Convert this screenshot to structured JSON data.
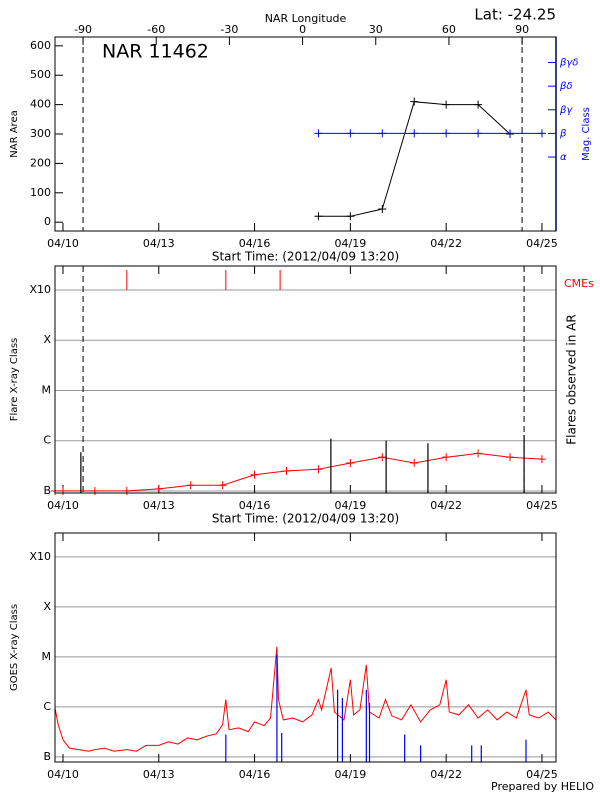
{
  "chart_data": [
    {
      "type": "line",
      "title": "Lat: -24.25",
      "annotation": "NAR 11462",
      "x2label": "NAR Longitude",
      "x2lim": [
        -101.5,
        103.9
      ],
      "x2ticks": [
        -90,
        -60,
        -30,
        0,
        30,
        60,
        90
      ],
      "limb_x2": [
        -90,
        90
      ],
      "xlabel": "Start Time: (2012/04/09 13:20)",
      "xlim": [
        9.75,
        25.44
      ],
      "xticks": [
        {
          "value": 10,
          "label": "04/10"
        },
        {
          "value": 13,
          "label": "04/13"
        },
        {
          "value": 16,
          "label": "04/16"
        },
        {
          "value": 19,
          "label": "04/19"
        },
        {
          "value": 22,
          "label": "04/22"
        },
        {
          "value": 25,
          "label": "04/25"
        }
      ],
      "ylabel": "NAR Area",
      "ylim": [
        -30,
        630
      ],
      "yticks": [
        0,
        100,
        200,
        300,
        400,
        500,
        600
      ],
      "grid": false,
      "y2label": "Mag. Class",
      "y2color": "#0000ff",
      "y2lim": [
        -2.13,
        6.08
      ],
      "y2ticks": [
        {
          "value": 1,
          "label": "α"
        },
        {
          "value": 2,
          "label": "β"
        },
        {
          "value": 3,
          "label": "βγ"
        },
        {
          "value": 4,
          "label": "βδ"
        },
        {
          "value": 5,
          "label": "βγδ"
        }
      ],
      "series": [
        {
          "kind": "line",
          "marker": "+",
          "color": "#000000",
          "x": [
            18,
            19,
            20,
            21,
            22,
            23,
            24
          ],
          "values": [
            20,
            20,
            45,
            410,
            400,
            400,
            300
          ]
        },
        {
          "kind": "line",
          "marker": "+",
          "axis": "y2",
          "color": "#0000ff",
          "x": [
            18,
            19,
            20,
            21,
            22,
            23,
            24,
            25
          ],
          "values": [
            2,
            2,
            2,
            2,
            2,
            2,
            2,
            2
          ]
        }
      ]
    },
    {
      "type": "line",
      "ylog": true,
      "grid": true,
      "limb_x": [
        10.63,
        24.44
      ],
      "xlabel": "Start Time: (2012/04/09 13:20)",
      "xlim": [
        9.75,
        25.44
      ],
      "xticks": [
        {
          "value": 10,
          "label": "04/10"
        },
        {
          "value": 13,
          "label": "04/13"
        },
        {
          "value": 16,
          "label": "04/16"
        },
        {
          "value": 19,
          "label": "04/19"
        },
        {
          "value": 22,
          "label": "04/22"
        },
        {
          "value": 25,
          "label": "04/25"
        }
      ],
      "ylabel": "Flare X-ray Class",
      "ylim": [
        9.1e-08,
        0.003
      ],
      "yticks": [
        {
          "value": 1e-07,
          "label": "B"
        },
        {
          "value": 1e-06,
          "label": "C"
        },
        {
          "value": 1e-05,
          "label": "M"
        },
        {
          "value": 0.0001,
          "label": "X"
        },
        {
          "value": 0.001,
          "label": "X10"
        }
      ],
      "y2label": "Flares observed in AR",
      "series": [
        {
          "kind": "line",
          "marker": "+",
          "color": "#ff0000",
          "x": [
            9.75,
            10,
            11,
            12,
            13,
            14,
            15,
            16,
            17,
            18,
            19,
            20,
            21,
            22,
            23,
            24,
            25
          ],
          "values": [
            1e-07,
            1e-07,
            1e-07,
            1e-07,
            1.1e-07,
            1.3e-07,
            1.3e-07,
            2.1e-07,
            2.5e-07,
            2.7e-07,
            3.6e-07,
            4.7e-07,
            3.6e-07,
            4.7e-07,
            5.6e-07,
            4.7e-07,
            4.3e-07
          ]
        },
        {
          "kind": "spikes",
          "color": "#000000",
          "x": [
            10.56,
            18.39,
            20.12,
            21.43,
            24.44
          ],
          "values": [
            5.9e-07,
            1.1e-06,
            1e-06,
            8.9e-07,
            1.3e-06
          ]
        },
        {
          "kind": "events",
          "name": "CMEs",
          "color": "#ff0000",
          "x": [
            12.0,
            15.1,
            16.8
          ]
        }
      ]
    },
    {
      "type": "line",
      "ylog": true,
      "grid": true,
      "footer": "Prepared by HELIO",
      "xlim": [
        9.75,
        25.44
      ],
      "xticks": [
        {
          "value": 10,
          "label": "04/10"
        },
        {
          "value": 13,
          "label": "04/13"
        },
        {
          "value": 16,
          "label": "04/16"
        },
        {
          "value": 19,
          "label": "04/19"
        },
        {
          "value": 22,
          "label": "04/22"
        },
        {
          "value": 25,
          "label": "04/25"
        }
      ],
      "ylabel": "GOES X-ray Class",
      "ylim": [
        7.9e-08,
        0.003
      ],
      "yticks": [
        {
          "value": 1e-07,
          "label": "B"
        },
        {
          "value": 1e-06,
          "label": "C"
        },
        {
          "value": 1e-05,
          "label": "M"
        },
        {
          "value": 0.0001,
          "label": "X"
        },
        {
          "value": 0.001,
          "label": "X10"
        }
      ],
      "series": [
        {
          "kind": "line",
          "color": "#ff0000",
          "x": [
            9.75,
            9.85,
            10.0,
            10.2,
            10.5,
            10.8,
            11.0,
            11.3,
            11.6,
            12.0,
            12.3,
            12.6,
            13.0,
            13.3,
            13.6,
            13.9,
            14.2,
            14.5,
            14.8,
            15.0,
            15.1,
            15.2,
            15.5,
            15.8,
            16.0,
            16.3,
            16.5,
            16.7,
            16.75,
            16.9,
            17.2,
            17.5,
            17.8,
            18.0,
            18.1,
            18.4,
            18.5,
            18.8,
            19.0,
            19.1,
            19.3,
            19.5,
            19.6,
            19.9,
            20.1,
            20.3,
            20.6,
            20.9,
            21.2,
            21.5,
            21.8,
            22.0,
            22.1,
            22.4,
            22.7,
            23.0,
            23.3,
            23.6,
            23.9,
            24.2,
            24.5,
            24.6,
            24.9,
            25.2,
            25.44
          ],
          "values": [
            9.5e-07,
            4.4e-07,
            2.2e-07,
            1.5e-07,
            1.4e-07,
            1.3e-07,
            1.4e-07,
            1.5e-07,
            1.3e-07,
            1.4e-07,
            1.3e-07,
            1.7e-07,
            1.7e-07,
            2e-07,
            1.8e-07,
            2.4e-07,
            2.2e-07,
            2.6e-07,
            2.9e-07,
            4.4e-07,
            1.4e-06,
            3.5e-07,
            3.8e-07,
            3.2e-07,
            5e-07,
            4.2e-07,
            6e-07,
            1.6e-05,
            1.4e-06,
            5.5e-07,
            6e-07,
            5e-07,
            6.9e-07,
            1.4e-06,
            8.7e-07,
            6e-06,
            7.9e-07,
            5.5e-07,
            3.5e-06,
            6.9e-07,
            8.7e-07,
            6.9e-06,
            7.9e-07,
            6e-07,
            1.4e-06,
            6.6e-07,
            5.5e-07,
            1.1e-06,
            5e-07,
            8.7e-07,
            1.1e-06,
            3.5e-06,
            7.9e-07,
            6.9e-07,
            1.1e-06,
            6e-07,
            8.7e-07,
            5.5e-07,
            7.9e-07,
            6e-07,
            2.2e-06,
            6.9e-07,
            6e-07,
            7.9e-07,
            5.5e-07
          ]
        },
        {
          "kind": "spikes",
          "color": "#0000ff",
          "x": [
            15.1,
            16.7,
            16.85,
            18.6,
            18.75,
            19.5,
            19.6,
            20.7,
            21.2,
            22.8,
            23.1,
            24.5
          ],
          "values": [
            2.8e-07,
            1.1e-05,
            3e-07,
            2.2e-06,
            1.5e-06,
            2.2e-06,
            1.2e-06,
            2.8e-07,
            1.7e-07,
            1.7e-07,
            1.7e-07,
            2.2e-07
          ]
        }
      ]
    }
  ]
}
